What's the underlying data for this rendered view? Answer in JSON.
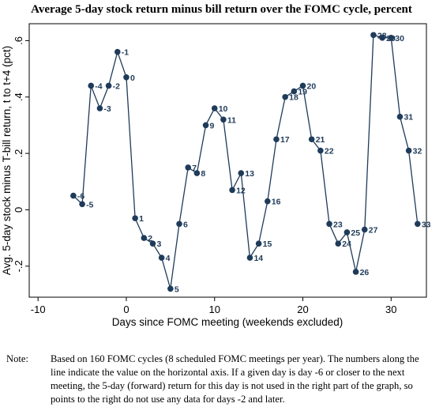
{
  "title": "Average 5-day stock return minus bill return over the FOMC cycle, percent",
  "note": {
    "prefix": "Note:",
    "text": "Based on 160 FOMC cycles (8 scheduled FOMC meetings per year). The numbers along the line indicate the value on the horizontal axis. If a given day is day -6 or closer to the next meeting, the 5-day (forward) return for this day is not used in the right part of the graph, so points to the right do not use any data for days -2 and later."
  },
  "chart_data": {
    "type": "line",
    "title": "Average 5-day stock return minus bill return over the FOMC cycle, percent",
    "xlabel": "Days since FOMC meeting (weekends excluded)",
    "ylabel": "Avg. 5-day stock minus T-bill return, t to t+4 (pct)",
    "xlim": [
      -11,
      34
    ],
    "ylim": [
      -0.31,
      0.66
    ],
    "xticks": [
      -10,
      0,
      10,
      20,
      30
    ],
    "xtick_labels": [
      "-10",
      "0",
      "10",
      "20",
      "30"
    ],
    "yticks": [
      -0.2,
      0,
      0.2,
      0.4,
      0.6
    ],
    "ytick_labels": [
      "-.2",
      "0",
      ".2",
      ".4",
      ".6"
    ],
    "grid": false,
    "line_color": "#1f3b5a",
    "marker_color": "#1f3b5a",
    "x": [
      -6,
      -5,
      -4,
      -3,
      -2,
      -1,
      0,
      1,
      2,
      3,
      4,
      5,
      6,
      7,
      8,
      9,
      10,
      11,
      12,
      13,
      14,
      15,
      16,
      17,
      18,
      19,
      20,
      21,
      22,
      23,
      24,
      25,
      26,
      27,
      28,
      29,
      30,
      31,
      32,
      33
    ],
    "y": [
      0.05,
      0.02,
      0.44,
      0.36,
      0.44,
      0.56,
      0.47,
      -0.03,
      -0.1,
      -0.12,
      -0.17,
      -0.28,
      -0.05,
      0.15,
      0.13,
      0.3,
      0.36,
      0.32,
      0.07,
      0.13,
      -0.17,
      -0.12,
      0.03,
      0.25,
      0.4,
      0.42,
      0.44,
      0.25,
      0.21,
      -0.05,
      -0.12,
      -0.08,
      -0.22,
      -0.07,
      0.62,
      0.61,
      0.61,
      0.33,
      0.21,
      -0.05
    ],
    "point_labels": [
      "-6",
      "-5",
      "-4",
      "-3",
      "-2",
      "-1",
      "0",
      "1",
      "2",
      "3",
      "4",
      "5",
      "6",
      "7",
      "8",
      "9",
      "10",
      "11",
      "12",
      "13",
      "14",
      "15",
      "16",
      "17",
      "18",
      "19",
      "20",
      "21",
      "22",
      "23",
      "24",
      "25",
      "26",
      "27",
      "28",
      "29",
      "30",
      "31",
      "32",
      "33"
    ]
  }
}
